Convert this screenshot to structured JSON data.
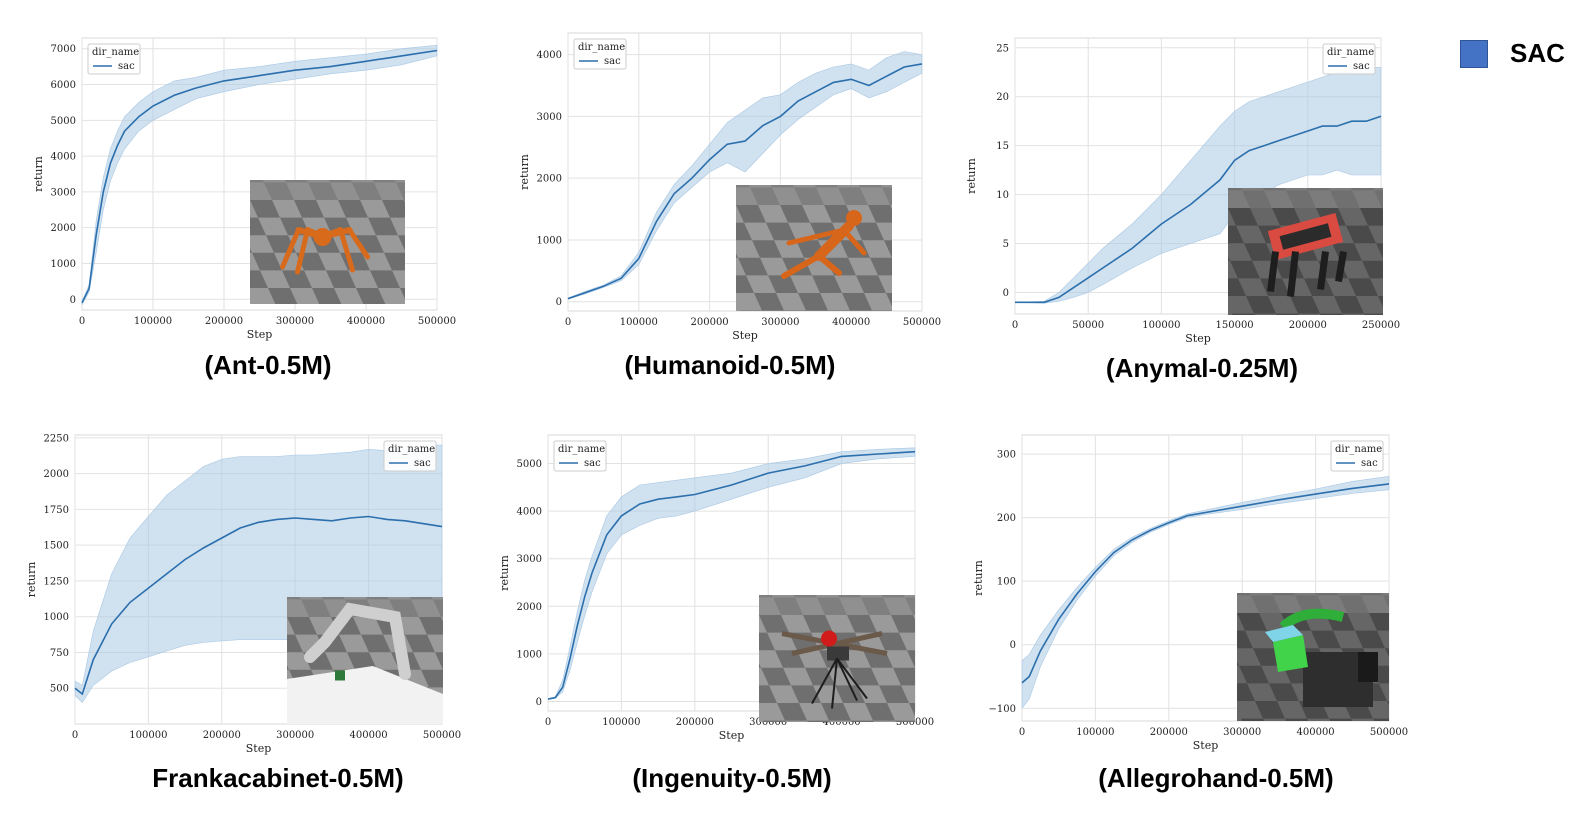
{
  "legend": {
    "label": "SAC",
    "color": "#4472c4"
  },
  "chart_data": [
    {
      "type": "line",
      "caption": "(Ant-0.5M)",
      "xlabel": "Step",
      "ylabel": "return",
      "xlim": [
        0,
        500000
      ],
      "ylim": [
        -300,
        7300
      ],
      "xticks": [
        0,
        100000,
        200000,
        300000,
        400000,
        500000
      ],
      "yticks": [
        0,
        1000,
        2000,
        3000,
        4000,
        5000,
        6000,
        7000
      ],
      "legend_title": "dir_name",
      "legend_position": "top-left",
      "grid": true,
      "inset": "ant",
      "series": [
        {
          "name": "sac",
          "color": "#2b6fad",
          "x": [
            0,
            10000,
            20000,
            30000,
            40000,
            50000,
            60000,
            80000,
            100000,
            130000,
            160000,
            200000,
            250000,
            300000,
            350000,
            400000,
            450000,
            500000
          ],
          "y": [
            -100,
            300,
            1800,
            3000,
            3800,
            4300,
            4700,
            5100,
            5400,
            5700,
            5900,
            6100,
            6250,
            6400,
            6500,
            6650,
            6800,
            6950
          ],
          "low": [
            -150,
            200,
            1300,
            2500,
            3300,
            3800,
            4200,
            4700,
            5000,
            5300,
            5600,
            5800,
            6000,
            6150,
            6300,
            6400,
            6550,
            6800
          ],
          "high": [
            -50,
            400,
            2200,
            3400,
            4200,
            4700,
            5100,
            5500,
            5800,
            6100,
            6200,
            6400,
            6500,
            6650,
            6750,
            6850,
            7000,
            7100
          ]
        }
      ]
    },
    {
      "type": "line",
      "caption": "(Humanoid-0.5M)",
      "xlabel": "Step",
      "ylabel": "return",
      "xlim": [
        0,
        500000
      ],
      "ylim": [
        -150,
        4350
      ],
      "xticks": [
        0,
        100000,
        200000,
        300000,
        400000,
        500000
      ],
      "yticks": [
        0,
        1000,
        2000,
        3000,
        4000
      ],
      "legend_title": "dir_name",
      "legend_position": "top-left",
      "grid": true,
      "inset": "humanoid",
      "series": [
        {
          "name": "sac",
          "color": "#2b6fad",
          "x": [
            0,
            25000,
            50000,
            75000,
            100000,
            125000,
            150000,
            175000,
            200000,
            225000,
            250000,
            275000,
            300000,
            325000,
            350000,
            375000,
            400000,
            425000,
            450000,
            475000,
            500000
          ],
          "y": [
            50,
            150,
            250,
            380,
            700,
            1300,
            1750,
            2000,
            2300,
            2550,
            2600,
            2850,
            3000,
            3250,
            3400,
            3550,
            3600,
            3500,
            3650,
            3800,
            3850
          ],
          "low": [
            40,
            130,
            230,
            340,
            600,
            1150,
            1600,
            1850,
            2100,
            2250,
            2100,
            2400,
            2700,
            2950,
            3150,
            3350,
            3450,
            3300,
            3400,
            3550,
            3700
          ],
          "high": [
            60,
            170,
            270,
            420,
            800,
            1450,
            1900,
            2200,
            2550,
            2900,
            3100,
            3300,
            3350,
            3550,
            3700,
            3800,
            3850,
            3750,
            3950,
            4050,
            4000
          ]
        }
      ]
    },
    {
      "type": "line",
      "caption": "(Anymal-0.25M)",
      "xlabel": "Step",
      "ylabel": "return",
      "xlim": [
        0,
        250000
      ],
      "ylim": [
        -2.2,
        26
      ],
      "xticks": [
        0,
        50000,
        100000,
        150000,
        200000,
        250000
      ],
      "yticks": [
        0,
        5,
        10,
        15,
        20,
        25
      ],
      "legend_title": "dir_name",
      "legend_position": "top-right",
      "grid": true,
      "inset": "anymal",
      "series": [
        {
          "name": "sac",
          "color": "#2b6fad",
          "x": [
            0,
            20000,
            30000,
            40000,
            50000,
            60000,
            80000,
            100000,
            120000,
            140000,
            150000,
            160000,
            170000,
            180000,
            190000,
            200000,
            210000,
            220000,
            230000,
            240000,
            250000
          ],
          "y": [
            -1,
            -1,
            -0.5,
            0.5,
            1.5,
            2.5,
            4.5,
            7,
            9,
            11.5,
            13.5,
            14.5,
            15,
            15.5,
            16,
            16.5,
            17,
            17,
            17.5,
            17.5,
            18
          ],
          "low": [
            -1,
            -1.1,
            -0.9,
            -0.5,
            0,
            0.8,
            2.5,
            4,
            5,
            6,
            8,
            9,
            10,
            11,
            11.5,
            12,
            12,
            12.5,
            12,
            12,
            12
          ],
          "high": [
            -1,
            -0.9,
            0,
            1.5,
            3,
            4.5,
            7,
            10,
            13.5,
            17,
            18.5,
            19.5,
            20,
            20.5,
            21,
            21.5,
            22,
            22.5,
            22.5,
            23,
            23
          ]
        }
      ]
    },
    {
      "type": "line",
      "caption": "Frankacabinet-0.5M)",
      "xlabel": "Step",
      "ylabel": "return",
      "xlim": [
        0,
        500000
      ],
      "ylim": [
        250,
        2270
      ],
      "xticks": [
        0,
        100000,
        200000,
        300000,
        400000,
        500000
      ],
      "yticks": [
        500,
        750,
        1000,
        1250,
        1500,
        1750,
        2000,
        2250
      ],
      "legend_title": "dir_name",
      "legend_position": "top-right",
      "grid": true,
      "inset": "franka",
      "series": [
        {
          "name": "sac",
          "color": "#2b6fad",
          "x": [
            0,
            10000,
            25000,
            50000,
            75000,
            100000,
            125000,
            150000,
            175000,
            200000,
            225000,
            250000,
            275000,
            300000,
            325000,
            350000,
            375000,
            400000,
            425000,
            450000,
            475000,
            500000
          ],
          "y": [
            500,
            460,
            700,
            950,
            1100,
            1200,
            1300,
            1400,
            1480,
            1550,
            1620,
            1660,
            1680,
            1690,
            1680,
            1670,
            1690,
            1700,
            1680,
            1670,
            1650,
            1630
          ],
          "low": [
            450,
            400,
            520,
            620,
            680,
            720,
            760,
            800,
            820,
            830,
            840,
            840,
            840,
            840,
            840,
            840,
            840,
            840,
            840,
            840,
            840,
            840
          ],
          "high": [
            550,
            520,
            900,
            1300,
            1550,
            1700,
            1850,
            1950,
            2050,
            2100,
            2120,
            2120,
            2120,
            2130,
            2130,
            2140,
            2150,
            2170,
            2160,
            2180,
            2200,
            2200
          ]
        }
      ]
    },
    {
      "type": "line",
      "caption": "(Ingenuity-0.5M)",
      "xlabel": "Step",
      "ylabel": "return",
      "xlim": [
        0,
        500000
      ],
      "ylim": [
        -200,
        5600
      ],
      "xticks": [
        0,
        100000,
        200000,
        300000,
        400000,
        500000
      ],
      "yticks": [
        0,
        1000,
        2000,
        3000,
        4000,
        5000
      ],
      "legend_title": "dir_name",
      "legend_position": "top-left",
      "grid": true,
      "inset": "ingenuity",
      "series": [
        {
          "name": "sac",
          "color": "#2b6fad",
          "x": [
            0,
            10000,
            20000,
            30000,
            40000,
            50000,
            60000,
            80000,
            100000,
            125000,
            150000,
            175000,
            200000,
            250000,
            300000,
            350000,
            400000,
            450000,
            500000
          ],
          "y": [
            50,
            80,
            300,
            900,
            1600,
            2200,
            2700,
            3500,
            3900,
            4150,
            4250,
            4300,
            4350,
            4550,
            4800,
            4950,
            5150,
            5200,
            5250
          ],
          "low": [
            50,
            70,
            200,
            650,
            1250,
            1800,
            2300,
            3100,
            3500,
            3700,
            3850,
            3900,
            4000,
            4250,
            4500,
            4700,
            5000,
            5100,
            5150
          ],
          "high": [
            60,
            100,
            450,
            1150,
            1900,
            2550,
            3050,
            3900,
            4300,
            4550,
            4600,
            4650,
            4700,
            4800,
            5000,
            5100,
            5250,
            5300,
            5330
          ]
        }
      ]
    },
    {
      "type": "line",
      "caption": "(Allegrohand-0.5M)",
      "xlabel": "Step",
      "ylabel": "return",
      "xlim": [
        0,
        500000
      ],
      "ylim": [
        -120,
        330
      ],
      "xticks": [
        0,
        100000,
        200000,
        300000,
        400000,
        500000
      ],
      "yticks": [
        -100,
        0,
        100,
        200,
        300
      ],
      "legend_title": "dir_name",
      "legend_position": "top-right",
      "grid": true,
      "inset": "allegro",
      "series": [
        {
          "name": "sac",
          "color": "#2b6fad",
          "x": [
            0,
            10000,
            25000,
            50000,
            75000,
            100000,
            125000,
            150000,
            175000,
            200000,
            225000,
            250000,
            300000,
            350000,
            400000,
            450000,
            500000
          ],
          "y": [
            -60,
            -50,
            -10,
            40,
            80,
            115,
            145,
            165,
            180,
            192,
            203,
            208,
            218,
            228,
            237,
            246,
            253
          ],
          "low": [
            -100,
            -85,
            -35,
            25,
            70,
            108,
            140,
            161,
            177,
            189,
            200,
            205,
            213,
            222,
            230,
            238,
            244
          ],
          "high": [
            -25,
            -15,
            15,
            55,
            90,
            122,
            150,
            169,
            183,
            195,
            206,
            212,
            224,
            235,
            245,
            257,
            265
          ]
        }
      ]
    }
  ]
}
